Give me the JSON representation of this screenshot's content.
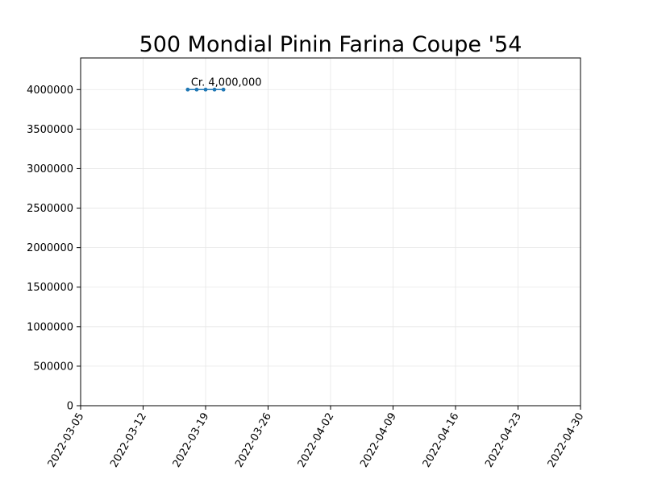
{
  "chart_data": {
    "type": "line",
    "title": "500 Mondial Pinin Farina Coupe '54",
    "xlabel": "",
    "ylabel": "",
    "x_tick_labels": [
      "2022-03-05",
      "2022-03-12",
      "2022-03-19",
      "2022-03-26",
      "2022-04-02",
      "2022-04-09",
      "2022-04-16",
      "2022-04-23",
      "2022-04-30"
    ],
    "y_tick_labels": [
      "0",
      "500000",
      "1000000",
      "1500000",
      "2000000",
      "2500000",
      "3000000",
      "3500000",
      "4000000"
    ],
    "xlim": [
      "2022-03-05",
      "2022-04-30"
    ],
    "ylim": [
      0,
      4400000
    ],
    "grid": true,
    "series": [
      {
        "color": "#1f77b4",
        "points": [
          {
            "x": "2022-03-17",
            "y": 4000000
          },
          {
            "x": "2022-03-18",
            "y": 4000000
          },
          {
            "x": "2022-03-19",
            "y": 4000000
          },
          {
            "x": "2022-03-20",
            "y": 4000000
          },
          {
            "x": "2022-03-21",
            "y": 4000000
          }
        ]
      }
    ],
    "annotations": [
      {
        "text": "Cr. 4,000,000",
        "x": "2022-03-17",
        "y": 4000000
      }
    ]
  }
}
